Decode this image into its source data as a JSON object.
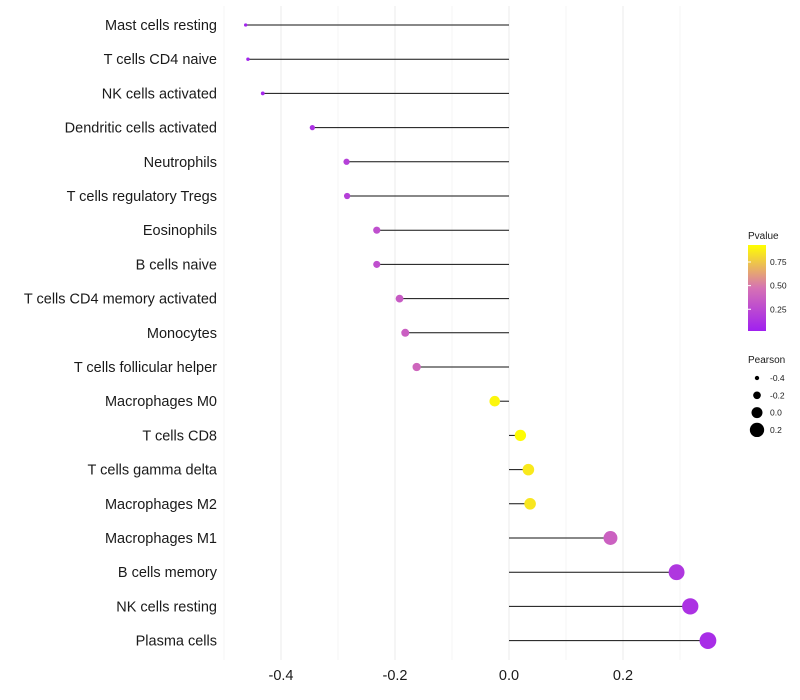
{
  "chart_data": {
    "type": "lollipop",
    "x_ticks": [
      -0.4,
      -0.2,
      0.0,
      0.2
    ],
    "x_tick_labels": [
      "-0.4",
      "-0.2",
      "0.0",
      "0.2"
    ],
    "xlim": [
      -0.5,
      0.37
    ],
    "baseline": 0.0,
    "grid": true,
    "points": [
      {
        "label": "Mast cells resting",
        "pearson": -0.462,
        "pvalue": 0.04
      },
      {
        "label": "T cells CD4 naive",
        "pearson": -0.458,
        "pvalue": 0.04
      },
      {
        "label": "NK cells activated",
        "pearson": -0.432,
        "pvalue": 0.06
      },
      {
        "label": "Dendritic cells activated",
        "pearson": -0.345,
        "pvalue": 0.12
      },
      {
        "label": "Neutrophils",
        "pearson": -0.285,
        "pvalue": 0.2
      },
      {
        "label": "T cells regulatory  Tregs ",
        "pearson": -0.284,
        "pvalue": 0.2
      },
      {
        "label": "Eosinophils",
        "pearson": -0.232,
        "pvalue": 0.28
      },
      {
        "label": "B cells naive",
        "pearson": -0.232,
        "pvalue": 0.28
      },
      {
        "label": "T cells CD4 memory activated",
        "pearson": -0.192,
        "pvalue": 0.35
      },
      {
        "label": "Monocytes",
        "pearson": -0.182,
        "pvalue": 0.37
      },
      {
        "label": "T cells follicular helper",
        "pearson": -0.162,
        "pvalue": 0.41
      },
      {
        "label": "Macrophages M0",
        "pearson": -0.025,
        "pvalue": 0.9
      },
      {
        "label": "T cells CD8",
        "pearson": 0.02,
        "pvalue": 0.92
      },
      {
        "label": "T cells gamma delta",
        "pearson": 0.034,
        "pvalue": 0.86
      },
      {
        "label": "Macrophages M2",
        "pearson": 0.037,
        "pvalue": 0.85
      },
      {
        "label": "Macrophages M1",
        "pearson": 0.178,
        "pvalue": 0.38
      },
      {
        "label": "B cells memory",
        "pearson": 0.294,
        "pvalue": 0.15
      },
      {
        "label": "NK cells resting",
        "pearson": 0.318,
        "pvalue": 0.12
      },
      {
        "label": "Plasma cells",
        "pearson": 0.349,
        "pvalue": 0.09
      }
    ],
    "color_legend": {
      "title": "Pvalue",
      "range": [
        0.02,
        0.93
      ],
      "ticks": [
        0.75,
        0.5,
        0.25
      ],
      "tick_labels": [
        "0.75",
        "0.50",
        "0.25"
      ],
      "low_color": "#a020f0",
      "mid_color": "#d672b4",
      "high_color": "#ffff00"
    },
    "size_legend": {
      "title": "Pearson",
      "values": [
        -0.4,
        -0.2,
        0.0,
        0.2
      ],
      "labels": [
        "-0.4",
        "-0.2",
        "0.0",
        "0.2"
      ]
    }
  }
}
